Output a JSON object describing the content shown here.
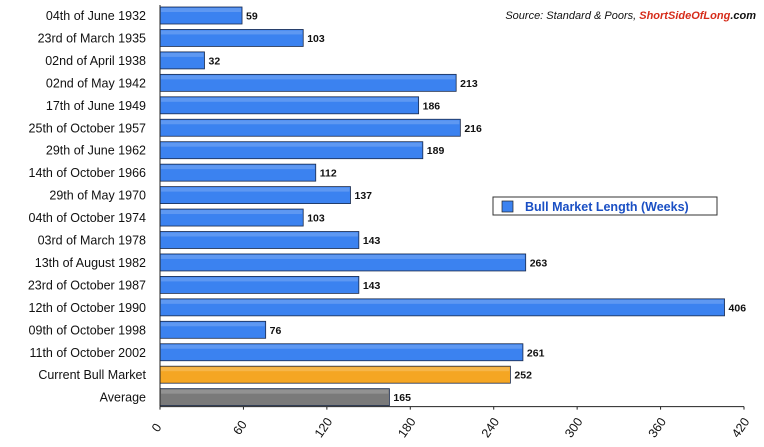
{
  "chart_data": {
    "type": "bar",
    "orientation": "horizontal",
    "categories": [
      "04th of June 1932",
      "23rd of March 1935",
      "02nd of April 1938",
      "02nd of May 1942",
      "17th of June 1949",
      "25th of October 1957",
      "29th of June 1962",
      "14th of October 1966",
      "29th of May 1970",
      "04th of October 1974",
      "03rd of March 1978",
      "13th of August 1982",
      "23rd of October 1987",
      "12th of October 1990",
      "09th of October 1998",
      "11th of October 2002",
      "Current Bull Market",
      "Average"
    ],
    "values": [
      59,
      103,
      32,
      213,
      186,
      216,
      189,
      112,
      137,
      103,
      143,
      263,
      143,
      406,
      76,
      261,
      252,
      165
    ],
    "bar_colors": [
      "#3b82f0",
      "#3b82f0",
      "#3b82f0",
      "#3b82f0",
      "#3b82f0",
      "#3b82f0",
      "#3b82f0",
      "#3b82f0",
      "#3b82f0",
      "#3b82f0",
      "#3b82f0",
      "#3b82f0",
      "#3b82f0",
      "#3b82f0",
      "#3b82f0",
      "#3b82f0",
      "#f5a623",
      "#7a7a7a"
    ],
    "series": [
      {
        "name": "Bull Market Length (Weeks)",
        "color": "#3b82f0"
      }
    ],
    "title": "",
    "xlabel": "",
    "ylabel": "",
    "xlim": [
      0,
      420
    ],
    "xticks": [
      0,
      60,
      120,
      180,
      240,
      300,
      360,
      420
    ],
    "xtick_labels": [
      "0",
      "60",
      "120",
      "180",
      "240",
      "300",
      "360",
      "420"
    ],
    "grid": false,
    "legend_position": "right",
    "source": {
      "prefix": "Source: Standard & Poors, ",
      "brand_part1": "Short",
      "brand_part2": "SideOfLong",
      "brand_part3": ".com",
      "brand_color_1": "#d62c1a",
      "brand_color_2": "#d62c1a",
      "brand_color_3": "#111111"
    }
  }
}
